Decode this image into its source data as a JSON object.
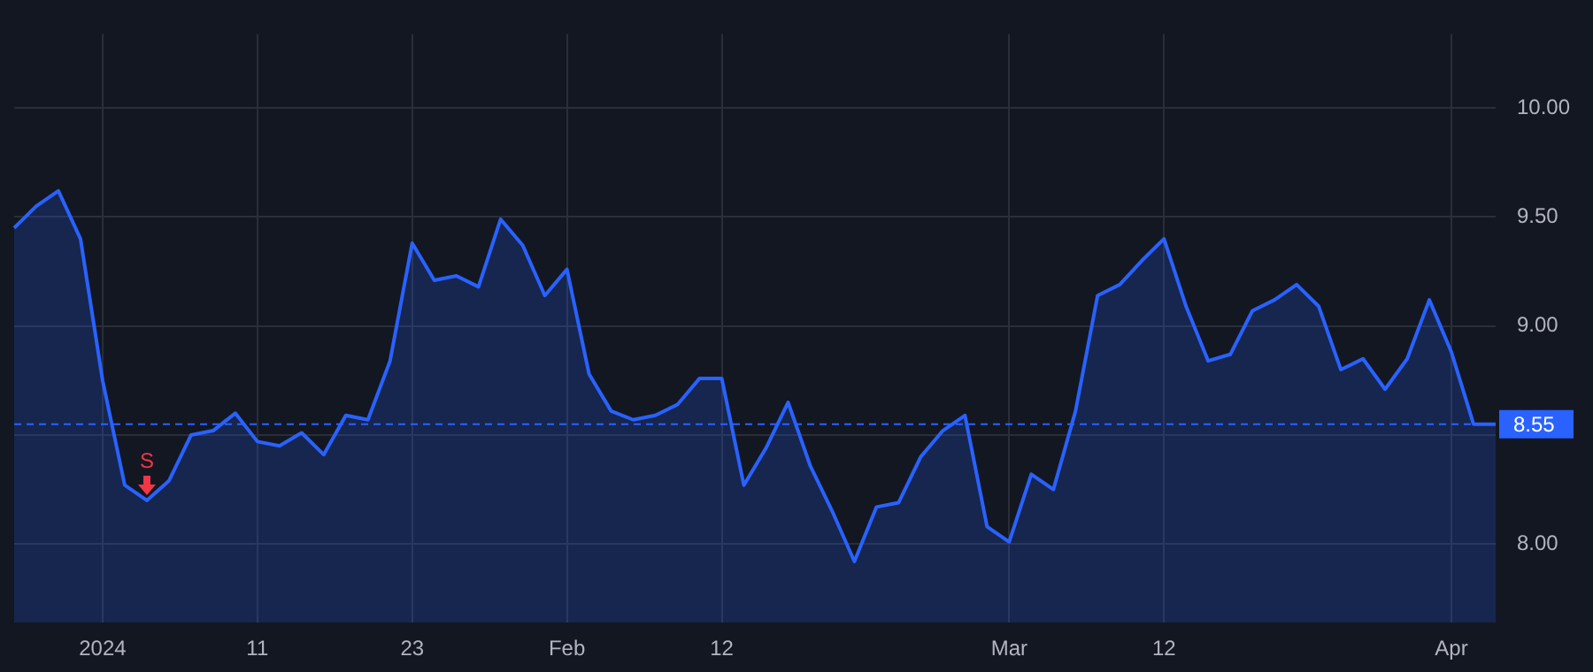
{
  "chart_data": {
    "type": "area",
    "categories": [
      null,
      null,
      null,
      null,
      "2024",
      null,
      null,
      null,
      null,
      null,
      null,
      "11",
      null,
      null,
      null,
      null,
      null,
      null,
      "23",
      null,
      null,
      null,
      null,
      null,
      null,
      "Feb",
      null,
      null,
      null,
      null,
      null,
      null,
      "12",
      null,
      null,
      null,
      null,
      null,
      null,
      null,
      null,
      null,
      null,
      null,
      null,
      "Mar",
      null,
      null,
      null,
      null,
      null,
      null,
      "12",
      null,
      null,
      null,
      null,
      null,
      null,
      null,
      null,
      null,
      null,
      null,
      null,
      "Apr",
      null,
      null
    ],
    "series": [
      {
        "color": "#2962ff",
        "values": [
          9.45,
          9.55,
          9.62,
          9.4,
          8.75,
          8.27,
          8.2,
          8.29,
          8.5,
          8.52,
          8.6,
          8.47,
          8.45,
          8.51,
          8.41,
          8.59,
          8.57,
          8.84,
          9.38,
          9.21,
          9.23,
          9.18,
          9.49,
          9.37,
          9.14,
          9.26,
          8.78,
          8.61,
          8.57,
          8.59,
          8.64,
          8.76,
          8.76,
          8.27,
          8.44,
          8.65,
          8.36,
          8.15,
          7.92,
          8.17,
          8.19,
          8.4,
          8.52,
          8.59,
          8.08,
          8.01,
          8.32,
          8.25,
          8.61,
          9.14,
          9.19,
          9.3,
          9.4,
          9.09,
          8.84,
          8.87,
          9.07,
          9.12,
          9.19,
          9.09,
          8.8,
          8.85,
          8.71,
          8.85,
          9.12,
          8.88,
          8.55,
          8.55
        ]
      }
    ],
    "ylim": [
      7.64,
      10.34
    ],
    "yticks": [
      {
        "value": 8,
        "label": "8.00"
      },
      {
        "value": 8.5,
        "label": null
      },
      {
        "value": 9,
        "label": "9.00"
      },
      {
        "value": 9.5,
        "label": "9.50"
      },
      {
        "value": 10,
        "label": "10.00"
      }
    ],
    "ref_lines": [
      {
        "axis": "y",
        "value": 8.55,
        "label": "8.55",
        "color": "#2962ff",
        "line_style": "dashed"
      }
    ],
    "annotations": [
      {
        "text": "S",
        "y": 8.2
      }
    ],
    "grid": true,
    "legend": false
  }
}
